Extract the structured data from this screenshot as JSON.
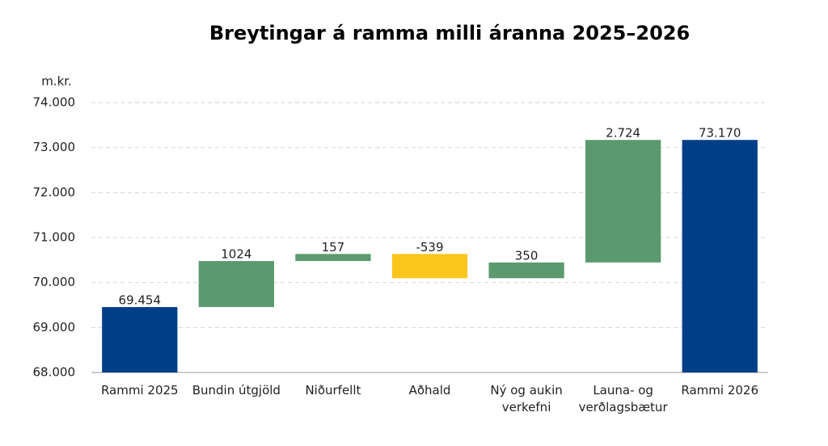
{
  "chart_data": {
    "type": "waterfall",
    "title": "Breytingar á ramma milli áranna 2025–2026",
    "y_label": "m.kr.",
    "categories": [
      "Rammi 2025",
      "Bundin útgjöld",
      "Niðurfellt",
      "Aðhald",
      "Ný og aukin verkefni",
      "Launa- og verðlagsbætur",
      "Rammi 2026"
    ],
    "values": [
      69454,
      1024,
      157,
      -539,
      350,
      2724,
      73170
    ],
    "value_labels": [
      "69.454",
      "1024",
      "157",
      "-539",
      "350",
      "2.724",
      "73.170"
    ],
    "measure": [
      "total",
      "relative",
      "relative",
      "relative",
      "relative",
      "relative",
      "total"
    ],
    "colors": {
      "total": "#003f87",
      "increase": "#5b9a6e",
      "decrease": "#fbc51c"
    },
    "ylim": [
      68000,
      74000
    ],
    "yticks": [
      {
        "value": 68000,
        "label": "68.000"
      },
      {
        "value": 69000,
        "label": "69.000"
      },
      {
        "value": 70000,
        "label": "70.000"
      },
      {
        "value": 71000,
        "label": "71.000"
      },
      {
        "value": 72000,
        "label": "72.000"
      },
      {
        "value": 73000,
        "label": "73.000"
      },
      {
        "value": 74000,
        "label": "74.000"
      }
    ],
    "grid": true
  }
}
